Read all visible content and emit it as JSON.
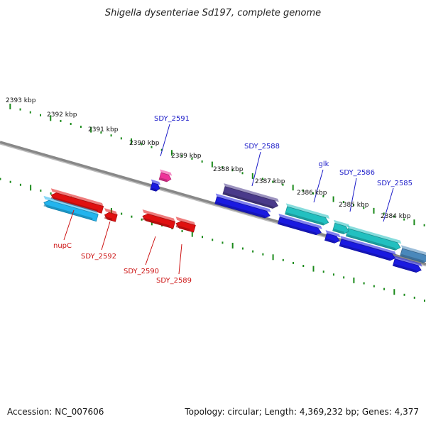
{
  "title": "Shigella dysenteriae Sd197, complete genome",
  "footer": {
    "accession": "Accession: NC_007606",
    "topology": "Topology: circular; Length: 4,369,232 bp; Genes: 4,377"
  },
  "colors": {
    "backbone": "#888888",
    "tick": "#1a8a1a",
    "label_forward": "#1a1ac8",
    "label_reverse": "#cc1111"
  },
  "kbp_ticks": [
    {
      "kbp": 2393,
      "label": "2393 kbp"
    },
    {
      "kbp": 2392,
      "label": "2392 kbp"
    },
    {
      "kbp": 2391,
      "label": "2391 kbp"
    },
    {
      "kbp": 2390,
      "label": "2390 kbp"
    },
    {
      "kbp": 2389,
      "label": "2389 kbp"
    },
    {
      "kbp": 2388,
      "label": "2388 kbp"
    },
    {
      "kbp": 2387,
      "label": "2387 kbp"
    },
    {
      "kbp": 2386,
      "label": "2386 kbp"
    },
    {
      "kbp": 2385,
      "label": "2385 kbp"
    },
    {
      "kbp": 2384,
      "label": "2384 kbp"
    }
  ],
  "genes": [
    {
      "id": "nupC",
      "label": "nupC",
      "strand": "reverse",
      "color": "#e01010",
      "labelled": true
    },
    {
      "id": "nupC-cds",
      "label": "",
      "strand": "reverse",
      "color": "#22b4ee",
      "labelled": false
    },
    {
      "id": "SDY_2592",
      "label": "SDY_2592",
      "strand": "reverse",
      "color": "#e01010",
      "labelled": true
    },
    {
      "id": "SDY_2591",
      "label": "SDY_2591",
      "strand": "forward",
      "color": "#ee3399",
      "labelled": true
    },
    {
      "id": "SDY_2591-cds",
      "label": "",
      "strand": "forward",
      "color": "#1a1ae0",
      "labelled": false
    },
    {
      "id": "SDY_2590",
      "label": "SDY_2590",
      "strand": "reverse",
      "color": "#e01010",
      "labelled": true
    },
    {
      "id": "SDY_2589",
      "label": "SDY_2589",
      "strand": "reverse",
      "color": "#e01010",
      "labelled": true
    },
    {
      "id": "SDY_2588",
      "label": "SDY_2588",
      "strand": "forward",
      "color": "#4a3a8a",
      "labelled": true
    },
    {
      "id": "SDY_2588-cds",
      "label": "",
      "strand": "forward",
      "color": "#1a1ae0",
      "labelled": false
    },
    {
      "id": "glk",
      "label": "glk",
      "strand": "forward",
      "color": "#22c0c0",
      "labelled": true
    },
    {
      "id": "glk-cds",
      "label": "",
      "strand": "forward",
      "color": "#1a1ae0",
      "labelled": false
    },
    {
      "id": "SDY_2586",
      "label": "SDY_2586",
      "strand": "forward",
      "color": "#22c0c0",
      "labelled": true
    },
    {
      "id": "SDY_2586-cds",
      "label": "",
      "strand": "forward",
      "color": "#1a1ae0",
      "labelled": false
    },
    {
      "id": "SDY_2585",
      "label": "SDY_2585",
      "strand": "forward",
      "color": "#22c0c0",
      "labelled": true
    },
    {
      "id": "SDY_2585-cds",
      "label": "",
      "strand": "forward",
      "color": "#1a1ae0",
      "labelled": false
    },
    {
      "id": "SDY_2584",
      "label": "",
      "strand": "forward",
      "color": "#4a88bb",
      "labelled": false
    },
    {
      "id": "SDY_2584-cds",
      "label": "",
      "strand": "forward",
      "color": "#1a1ae0",
      "labelled": false
    }
  ]
}
